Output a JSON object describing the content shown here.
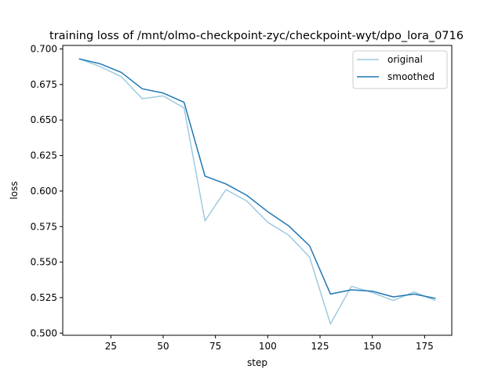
{
  "chart_data": {
    "type": "line",
    "title": "training loss of /mnt/olmo-checkpoint-zyc/checkpoint-wyt/dpo_lora_0716",
    "xlabel": "step",
    "ylabel": "loss",
    "xlim": [
      2,
      188
    ],
    "ylim": [
      0.4985,
      0.7025
    ],
    "xticks": [
      25,
      50,
      75,
      100,
      125,
      150,
      175
    ],
    "yticks": [
      0.5,
      0.525,
      0.55,
      0.575,
      0.6,
      0.625,
      0.65,
      0.675,
      0.7
    ],
    "ytick_labels": [
      "0.500",
      "0.525",
      "0.550",
      "0.575",
      "0.600",
      "0.625",
      "0.650",
      "0.675",
      "0.700"
    ],
    "legend_position": "upper right",
    "grid": false,
    "x": [
      10,
      20,
      30,
      40,
      50,
      60,
      70,
      80,
      90,
      100,
      110,
      120,
      130,
      140,
      150,
      160,
      170,
      180
    ],
    "series": [
      {
        "name": "original",
        "color": "#9ecae1",
        "values": [
          0.693,
          0.6875,
          0.6805,
          0.665,
          0.667,
          0.6585,
          0.579,
          0.601,
          0.593,
          0.578,
          0.569,
          0.5535,
          0.5065,
          0.533,
          0.5285,
          0.523,
          0.529,
          0.523
        ]
      },
      {
        "name": "smoothed",
        "color": "#1f77b4",
        "values": [
          0.693,
          0.6895,
          0.6835,
          0.672,
          0.669,
          0.6625,
          0.6105,
          0.605,
          0.597,
          0.5855,
          0.5755,
          0.5615,
          0.5275,
          0.5305,
          0.5295,
          0.5255,
          0.5275,
          0.5245
        ]
      }
    ]
  }
}
